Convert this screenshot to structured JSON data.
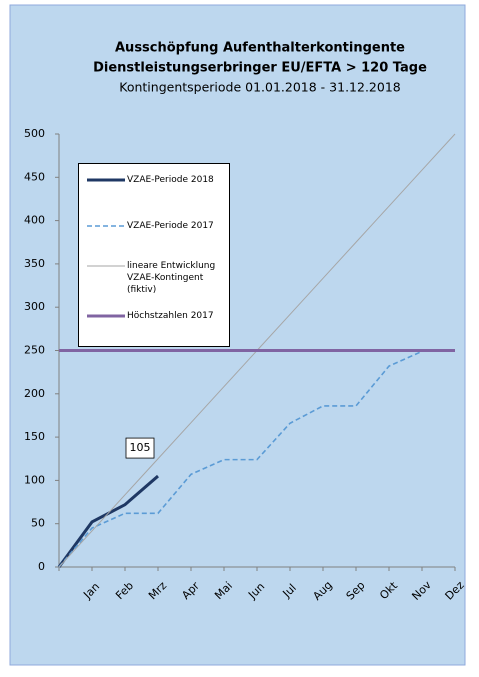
{
  "chart_data": {
    "type": "line",
    "title": [
      "Ausschöpfung Aufenthalterkontingente",
      "Dienstleistungserbringer EU/EFTA > 120 Tage"
    ],
    "subtitle": "Kontingentsperiode 01.01.2018 - 31.12.2018",
    "categories": [
      null,
      "Jan",
      "Feb",
      "Mrz",
      "Apr",
      "Mai",
      "Jun",
      "Jul",
      "Aug",
      "Sep",
      "Okt",
      "Nov",
      "Dez"
    ],
    "series": [
      {
        "name": "VZAE-Periode 2018",
        "color": "#1f3864",
        "style": "solid",
        "width": 3,
        "values": [
          0,
          52,
          72,
          105,
          null,
          null,
          null,
          null,
          null,
          null,
          null,
          null,
          null
        ]
      },
      {
        "name": "VZAE-Periode 2017",
        "color": "#5b9bd5",
        "style": "dashed",
        "width": 1.6,
        "values": [
          0,
          45,
          62,
          62,
          107,
          124,
          124,
          166,
          186,
          186,
          232,
          249,
          null
        ]
      },
      {
        "name": "lineare Entwicklung VZAE-Kontingent (fiktiv)",
        "color": "#a6a6a6",
        "style": "solid",
        "width": 1,
        "values": [
          0,
          41.67,
          83.33,
          125,
          166.67,
          208.33,
          250,
          291.67,
          333.33,
          375,
          416.67,
          458.33,
          500
        ]
      },
      {
        "name": "Höchstzahlen 2017",
        "color": "#8064a2",
        "style": "solid",
        "width": 3,
        "values": [
          250,
          250,
          250,
          250,
          250,
          250,
          250,
          250,
          250,
          250,
          250,
          250,
          250
        ]
      }
    ],
    "labeled_points": [
      {
        "series": 0,
        "index": 3
      }
    ],
    "ylim": [
      0,
      500
    ],
    "yticks": [
      0,
      50,
      100,
      150,
      200,
      250,
      300,
      350,
      400,
      450,
      500
    ],
    "grid": false,
    "legend": "upper left"
  }
}
